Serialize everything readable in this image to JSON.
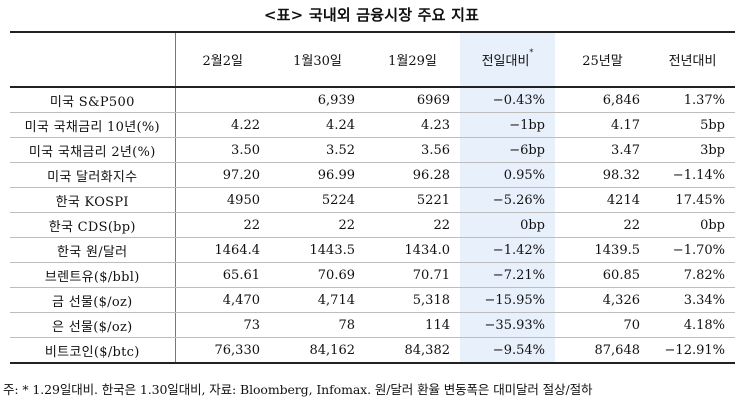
{
  "title": "<표> 국내외 금융시장 주요 지표",
  "headers": {
    "c1": "2월2일",
    "c2": "1월30일",
    "c3": "1월29일",
    "c4": "전일대비",
    "c4_mark": "*",
    "c5": "25년말",
    "c6": "전년대비"
  },
  "rows": [
    {
      "label": "미국 S&P500",
      "c1": "",
      "c2": "6,939",
      "c3": "6969",
      "c4": "−0.43%",
      "c5": "6,846",
      "c6": "1.37%"
    },
    {
      "label": "미국 국채금리 10년(%)",
      "c1": "4.22",
      "c2": "4.24",
      "c3": "4.23",
      "c4": "−1bp",
      "c5": "4.17",
      "c6": "5bp"
    },
    {
      "label": "미국 국채금리 2년(%)",
      "c1": "3.50",
      "c2": "3.52",
      "c3": "3.56",
      "c4": "−6bp",
      "c5": "3.47",
      "c6": "3bp"
    },
    {
      "label": "미국 달러화지수",
      "c1": "97.20",
      "c2": "96.99",
      "c3": "96.28",
      "c4": "0.95%",
      "c5": "98.32",
      "c6": "−1.14%"
    },
    {
      "label": "한국 KOSPI",
      "c1": "4950",
      "c2": "5224",
      "c3": "5221",
      "c4": "−5.26%",
      "c5": "4214",
      "c6": "17.45%"
    },
    {
      "label": "한국 CDS(bp)",
      "c1": "22",
      "c2": "22",
      "c3": "22",
      "c4": "0bp",
      "c5": "22",
      "c6": "0bp"
    },
    {
      "label": "한국 원/달러",
      "c1": "1464.4",
      "c2": "1443.5",
      "c3": "1434.0",
      "c4": "−1.42%",
      "c5": "1439.5",
      "c6": "−1.70%"
    },
    {
      "label": "브렌트유($/bbl)",
      "c1": "65.61",
      "c2": "70.69",
      "c3": "70.71",
      "c4": "−7.21%",
      "c5": "60.85",
      "c6": "7.82%"
    },
    {
      "label": "금 선물($/oz)",
      "c1": "4,470",
      "c2": "4,714",
      "c3": "5,318",
      "c4": "−15.95%",
      "c5": "4,326",
      "c6": "3.34%"
    },
    {
      "label": "은 선물($/oz)",
      "c1": "73",
      "c2": "78",
      "c3": "114",
      "c4": "−35.93%",
      "c5": "70",
      "c6": "4.18%"
    },
    {
      "label": "비트코인($/btc)",
      "c1": "76,330",
      "c2": "84,162",
      "c3": "84,382",
      "c4": "−9.54%",
      "c5": "87,648",
      "c6": "−12.91%"
    }
  ],
  "note": "주: * 1.29일대비. 한국은 1.30일대비, 자료: Bloomberg, Infomax. 원/달러 환율 변동폭은 대미달러 절상/절하",
  "colors": {
    "highlight_column": "#e8f0fb",
    "rule_dark": "#222222",
    "rule_light": "#bdbdbd"
  }
}
